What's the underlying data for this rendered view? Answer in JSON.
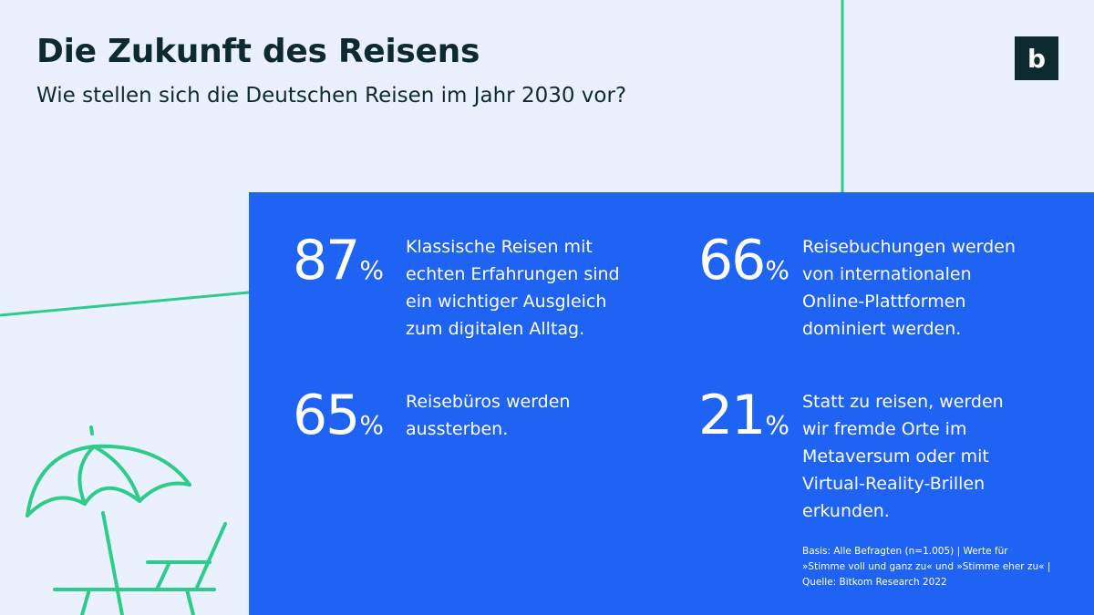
{
  "header": {
    "title": "Die Zukunft des Reisens",
    "subtitle": "Wie stellen sich die Deutschen Reisen im Jahr 2030 vor?"
  },
  "logo": {
    "letter": "b",
    "icon": "bitkom-logo-icon"
  },
  "stats": [
    {
      "value": "87",
      "unit": "%",
      "text": "Klassische Reisen mit\nechten Erfahrungen sind\nein wichtiger Ausgleich\nzum digitalen Alltag."
    },
    {
      "value": "66",
      "unit": "%",
      "text": "Reisebuchungen werden\nvon internationalen\nOnline-Plattformen\ndominiert werden."
    },
    {
      "value": "65",
      "unit": "%",
      "text": "Reisebüros werden\naussterben."
    },
    {
      "value": "21",
      "unit": "%",
      "text": "Statt zu reisen, werden\nwir fremde Orte im\nMetaversum oder mit\nVirtual-Reality-Brillen\nerkunden."
    }
  ],
  "footnote": "Basis: Alle Befragten (n=1.005) | Werte für\n»Stimme voll und ganz zu« und »Stimme eher zu« |\nQuelle: Bitkom Research 2022",
  "colors": {
    "background": "#eaf1fc",
    "panel": "#1f63f5",
    "accent_line": "#2ecc8a",
    "text_dark": "#0d2a2f"
  },
  "illustration": {
    "icon": "beach-umbrella-lounger-icon"
  }
}
